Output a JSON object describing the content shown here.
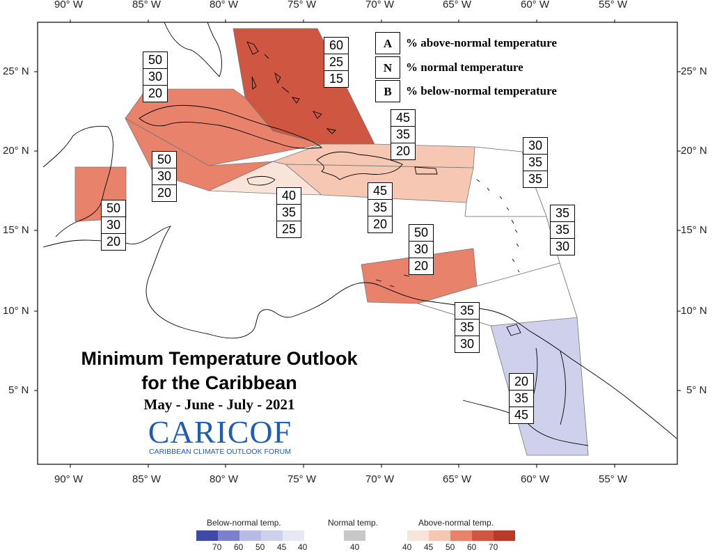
{
  "colors": {
    "above_40": "#f9e4da",
    "above_45": "#f6c8b4",
    "above_50": "#e9826a",
    "above_60": "#cf5640",
    "above_70": "#b8392a",
    "below_40": "#e7e7f6",
    "below_45": "#cfd0ec",
    "below_50": "#b8bbe3",
    "below_60": "#7a80cc",
    "below_70": "#3f4aa6",
    "normal_40": "#c8c8c8"
  },
  "axes": {
    "x_ticks": [
      "90° W",
      "85° W",
      "80° W",
      "75° W",
      "70° W",
      "65° W",
      "60° W",
      "55° W"
    ],
    "y_ticks": [
      "25° N",
      "20° N",
      "15° N",
      "10° N",
      "5° N"
    ]
  },
  "key": {
    "rows": [
      {
        "letter": "A",
        "text": "% above-normal temperature"
      },
      {
        "letter": "N",
        "text": "% normal temperature"
      },
      {
        "letter": "B",
        "text": "% below-normal temperature"
      }
    ]
  },
  "title": {
    "line1": "Minimum Temperature Outlook",
    "line2": "for the Caribbean",
    "season": "May - June - July - 2021"
  },
  "logo": {
    "word": "CARICOF",
    "sub": "CARIBBEAN CLIMATE OUTLOOK FORUM"
  },
  "regions": [
    {
      "name": "bahamas",
      "A": "60",
      "N": "25",
      "B": "15",
      "color": "above_60"
    },
    {
      "name": "cuba-west",
      "A": "50",
      "N": "30",
      "B": "20",
      "color": "above_50"
    },
    {
      "name": "cuba-east",
      "A": "50",
      "N": "30",
      "B": "20",
      "color": "above_50"
    },
    {
      "name": "belize",
      "A": "50",
      "N": "30",
      "B": "20",
      "color": "above_50"
    },
    {
      "name": "jamaica",
      "A": "40",
      "N": "35",
      "B": "25",
      "color": "above_40"
    },
    {
      "name": "hispaniola-north",
      "A": "45",
      "N": "35",
      "B": "20",
      "color": "above_45"
    },
    {
      "name": "hispaniola-south",
      "A": "45",
      "N": "35",
      "B": "20",
      "color": "above_45"
    },
    {
      "name": "abc-islands",
      "A": "50",
      "N": "30",
      "B": "20",
      "color": "above_50"
    },
    {
      "name": "leeward-islands",
      "A": "30",
      "N": "35",
      "B": "35",
      "color": "none"
    },
    {
      "name": "windward-islands",
      "A": "35",
      "N": "35",
      "B": "30",
      "color": "none"
    },
    {
      "name": "trinidad",
      "A": "35",
      "N": "35",
      "B": "30",
      "color": "none"
    },
    {
      "name": "guianas",
      "A": "20",
      "N": "35",
      "B": "45",
      "color": "below_45"
    }
  ],
  "legend": {
    "below_title": "Below-normal temp.",
    "normal_title": "Normal temp.",
    "above_title": "Above-normal temp.",
    "below_values": [
      "70",
      "60",
      "50",
      "45",
      "40"
    ],
    "normal_values": [
      "40"
    ],
    "above_values": [
      "40",
      "45",
      "50",
      "60",
      "70"
    ]
  }
}
